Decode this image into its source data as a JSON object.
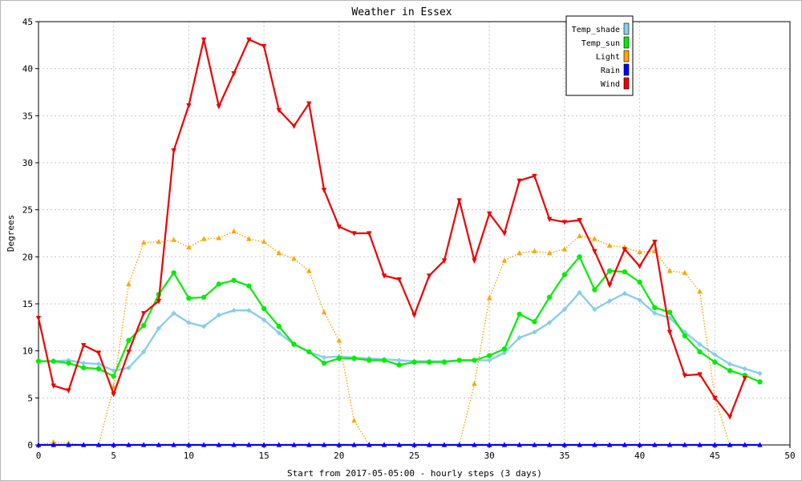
{
  "chart_data": {
    "type": "line",
    "title": "Weather in Essex",
    "xlabel": "Start from 2017-05-05:00 - hourly steps (3 days)",
    "ylabel": "Degrees",
    "xlim": [
      0,
      50
    ],
    "ylim": [
      0,
      45
    ],
    "xticks": [
      0,
      5,
      10,
      15,
      20,
      25,
      30,
      35,
      40,
      45,
      50
    ],
    "yticks": [
      0,
      5,
      10,
      15,
      20,
      25,
      30,
      35,
      40,
      45
    ],
    "grid": true,
    "legend_position": "top-right",
    "x": [
      0,
      1,
      2,
      3,
      4,
      5,
      6,
      7,
      8,
      9,
      10,
      11,
      12,
      13,
      14,
      15,
      16,
      17,
      18,
      19,
      20,
      21,
      22,
      23,
      24,
      25,
      26,
      27,
      28,
      29,
      30,
      31,
      32,
      33,
      34,
      35,
      36,
      37,
      38,
      39,
      40,
      41,
      42,
      43,
      44,
      45,
      46,
      47,
      48
    ],
    "series": [
      {
        "name": "Temp_shade",
        "color": "#87ceeb",
        "style": "solid",
        "marker": "diamond",
        "values": [
          8.9,
          8.9,
          9.0,
          8.7,
          8.6,
          7.9,
          8.2,
          9.9,
          12.4,
          14.0,
          13.0,
          12.6,
          13.8,
          14.3,
          14.3,
          13.3,
          11.9,
          10.7,
          9.9,
          9.3,
          9.4,
          9.3,
          9.2,
          9.1,
          9.0,
          8.9,
          8.9,
          8.9,
          9.0,
          9.0,
          9.0,
          9.8,
          11.4,
          12.0,
          13.0,
          14.4,
          16.2,
          14.4,
          15.3,
          16.1,
          15.4,
          14.0,
          13.5,
          12.0,
          10.7,
          9.6,
          8.6,
          8.1,
          7.6
        ]
      },
      {
        "name": "Temp_sun",
        "color": "#00ee00",
        "style": "solid",
        "marker": "circle",
        "values": [
          8.9,
          8.9,
          8.7,
          8.2,
          8.1,
          7.3,
          11.1,
          12.7,
          16.0,
          18.3,
          15.6,
          15.7,
          17.1,
          17.5,
          16.9,
          14.5,
          12.6,
          10.7,
          9.9,
          8.7,
          9.2,
          9.2,
          9.0,
          9.0,
          8.5,
          8.8,
          8.8,
          8.8,
          9.0,
          9.0,
          9.5,
          10.2,
          13.9,
          13.1,
          15.7,
          18.1,
          20.0,
          16.5,
          18.5,
          18.4,
          17.3,
          14.6,
          14.1,
          11.6,
          9.9,
          8.8,
          7.9,
          7.4,
          6.7
        ]
      },
      {
        "name": "Light",
        "color": "#ffa500",
        "style": "dotted",
        "marker": "triangle-up",
        "values": [
          0,
          0.3,
          0.2,
          0,
          0,
          6.2,
          17.1,
          21.5,
          21.6,
          21.8,
          21.0,
          21.9,
          22.0,
          22.7,
          21.9,
          21.6,
          20.4,
          19.8,
          18.5,
          14.1,
          11.1,
          2.6,
          0,
          0,
          0,
          0,
          0,
          0,
          0,
          6.5,
          15.6,
          19.6,
          20.4,
          20.6,
          20.4,
          20.8,
          22.2,
          21.9,
          21.2,
          21.0,
          20.5,
          20.6,
          18.5,
          18.3,
          16.3,
          5.0,
          0,
          null,
          null
        ]
      },
      {
        "name": "Rain",
        "color": "#0000ff",
        "style": "solid",
        "marker": "triangle-up",
        "values": [
          0,
          0,
          0,
          0,
          0,
          0,
          0,
          0,
          0,
          0,
          0,
          0,
          0,
          0,
          0,
          0,
          0,
          0,
          0,
          0,
          0,
          0,
          0,
          0,
          0,
          0,
          0,
          0,
          0,
          0,
          0,
          0,
          0,
          0,
          0,
          0,
          0,
          0,
          0,
          0,
          0,
          0,
          0,
          0,
          0,
          0,
          0,
          0,
          0
        ]
      },
      {
        "name": "Wind",
        "color": "#ee0000",
        "style": "solid",
        "marker": "triangle-down",
        "values": [
          13.5,
          6.3,
          5.8,
          10.6,
          9.8,
          5.4,
          9.9,
          14.0,
          15.3,
          31.3,
          36.1,
          43.1,
          36.0,
          39.5,
          43.1,
          42.4,
          35.6,
          33.9,
          36.3,
          27.1,
          23.2,
          22.5,
          22.5,
          18.0,
          17.6,
          13.8,
          18.0,
          19.6,
          26.0,
          19.6,
          24.6,
          22.5,
          28.1,
          28.6,
          24.0,
          23.7,
          23.9,
          20.6,
          17.0,
          20.8,
          19.0,
          21.6,
          12.0,
          7.4,
          7.5,
          5.0,
          3.0,
          7.1,
          null
        ]
      }
    ]
  }
}
